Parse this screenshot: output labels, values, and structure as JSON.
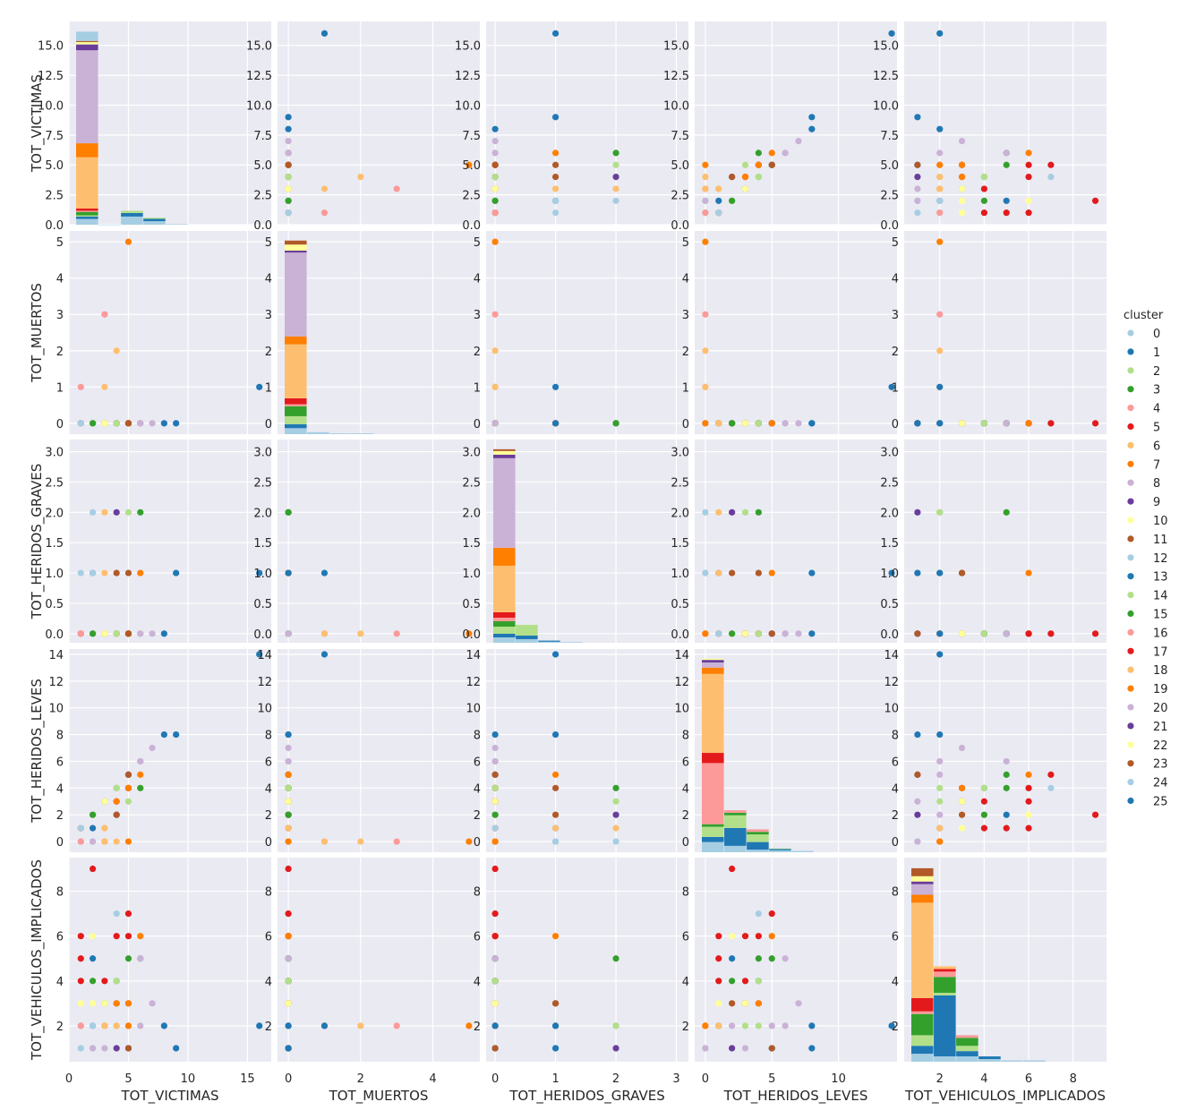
{
  "chart_data": {
    "type": "scatter",
    "kind": "pairplot",
    "variables": [
      "TOT_VICTIMAS",
      "TOT_MUERTOS",
      "TOT_HERIDOS_GRAVES",
      "TOT_HERIDOS_LEVES",
      "TOT_VEHICULOS_IMPLICADOS"
    ],
    "ranges": [
      [
        0,
        17
      ],
      [
        -0.3,
        5.3
      ],
      [
        -0.15,
        3.2
      ],
      [
        -0.8,
        14.4
      ],
      [
        0.4,
        9.5
      ]
    ],
    "xticks": [
      [
        0,
        5,
        10,
        15
      ],
      [
        0,
        2,
        4
      ],
      [
        0,
        1,
        2,
        3
      ],
      [
        0,
        5,
        10
      ],
      [
        2,
        4,
        6,
        8
      ]
    ],
    "yticks": [
      [
        "0.0",
        "2.5",
        "5.0",
        "7.5",
        "10.0",
        "12.5",
        "15.0"
      ],
      [
        "0",
        "1",
        "2",
        "3",
        "4",
        "5"
      ],
      [
        "0.0",
        "0.5",
        "1.0",
        "1.5",
        "2.0",
        "2.5",
        "3.0"
      ],
      [
        "0",
        "2",
        "4",
        "6",
        "8",
        "10",
        "12",
        "14"
      ],
      [
        "2",
        "4",
        "6",
        "8"
      ]
    ],
    "grid": true,
    "legend": {
      "title": "cluster",
      "position": "right",
      "labels": [
        "0",
        "1",
        "2",
        "3",
        "4",
        "5",
        "6",
        "7",
        "8",
        "9",
        "10",
        "11",
        "12",
        "13",
        "14",
        "15",
        "16",
        "17",
        "18",
        "19",
        "20",
        "21",
        "22",
        "23",
        "24",
        "25"
      ]
    },
    "palette": [
      "#a6cee3",
      "#1f78b4",
      "#b2df8a",
      "#33a02c",
      "#fb9a99",
      "#e31a1c",
      "#fdbf6f",
      "#ff7f00",
      "#cab2d6",
      "#6a3d9a",
      "#ffff99",
      "#b15928"
    ],
    "points": [
      [
        1,
        0,
        0,
        1,
        6,
        5
      ],
      [
        1,
        0,
        0,
        1,
        5,
        5
      ],
      [
        1,
        0,
        0,
        1,
        4,
        5
      ],
      [
        1,
        0,
        0,
        1,
        3,
        10
      ],
      [
        1,
        0,
        0,
        1,
        2,
        0
      ],
      [
        1,
        0,
        1,
        0,
        1,
        0
      ],
      [
        1,
        1,
        0,
        0,
        2,
        4
      ],
      [
        2,
        0,
        0,
        2,
        9,
        5
      ],
      [
        2,
        0,
        0,
        2,
        5,
        1
      ],
      [
        2,
        0,
        1,
        1,
        2,
        1
      ],
      [
        2,
        0,
        0,
        2,
        2,
        8
      ],
      [
        2,
        0,
        0,
        2,
        3,
        10
      ],
      [
        2,
        0,
        1,
        0,
        1,
        0
      ],
      [
        2,
        0,
        2,
        0,
        2,
        0
      ],
      [
        2,
        0,
        0,
        2,
        6,
        10
      ],
      [
        2,
        0,
        0,
        0,
        1,
        8
      ],
      [
        3,
        0,
        0,
        3,
        4,
        5
      ],
      [
        3,
        0,
        0,
        3,
        3,
        3
      ],
      [
        3,
        0,
        0,
        3,
        1,
        8
      ],
      [
        3,
        0,
        0,
        0,
        2,
        7
      ],
      [
        3,
        3,
        0,
        0,
        2,
        16
      ],
      [
        3,
        0,
        2,
        1,
        2,
        6
      ],
      [
        3,
        1,
        0,
        0,
        2,
        6
      ],
      [
        3,
        0,
        1,
        1,
        2,
        6
      ],
      [
        4,
        0,
        2,
        2,
        1,
        9
      ],
      [
        4,
        0,
        0,
        4,
        4,
        3
      ],
      [
        4,
        0,
        0,
        3,
        6,
        5
      ],
      [
        4,
        0,
        1,
        2,
        3,
        11
      ],
      [
        4,
        0,
        0,
        4,
        2,
        14
      ],
      [
        4,
        2,
        0,
        0,
        2,
        18
      ],
      [
        4,
        0,
        0,
        3,
        3,
        7
      ],
      [
        4,
        0,
        0,
        4,
        7,
        0
      ],
      [
        5,
        0,
        0,
        5,
        5,
        3
      ],
      [
        5,
        0,
        0,
        5,
        7,
        5
      ],
      [
        5,
        0,
        1,
        4,
        3,
        11
      ],
      [
        5,
        0,
        2,
        3,
        2,
        14
      ],
      [
        5,
        0,
        0,
        5,
        1,
        1
      ],
      [
        5,
        0,
        0,
        5,
        2,
        8
      ],
      [
        5,
        5,
        0,
        0,
        2,
        7
      ],
      [
        5,
        0,
        0,
        4,
        6,
        5
      ],
      [
        5,
        0,
        0,
        4,
        3,
        19
      ],
      [
        5,
        0,
        0,
        5,
        1,
        11
      ],
      [
        6,
        0,
        2,
        4,
        5,
        15
      ],
      [
        6,
        0,
        1,
        5,
        6,
        7
      ],
      [
        6,
        0,
        0,
        6,
        2,
        20
      ],
      [
        7,
        0,
        0,
        7,
        3,
        8
      ],
      [
        8,
        0,
        0,
        8,
        2,
        1
      ],
      [
        9,
        0,
        1,
        8,
        1,
        1
      ],
      [
        16,
        1,
        1,
        14,
        2,
        25
      ],
      [
        2,
        0,
        0,
        2,
        4,
        3
      ],
      [
        3,
        0,
        0,
        3,
        3,
        22
      ],
      [
        4,
        0,
        0,
        4,
        4,
        14
      ],
      [
        6,
        0,
        0,
        6,
        5,
        20
      ]
    ],
    "stacked_hist": [
      [
        [
          0,
          1,
          [
            0.5,
            0.2,
            0.1,
            0.3,
            0.1,
            0.2,
            4.4,
            1.2,
            8,
            0.5,
            0.2,
            0.1,
            0.8
          ]
        ],
        [
          1,
          2,
          [
            0
          ]
        ],
        [
          2,
          3,
          [
            0.7,
            0.3,
            0.2
          ]
        ],
        [
          3,
          4,
          [
            0.3,
            0.2,
            0.1
          ]
        ],
        [
          4,
          5,
          [
            0.05
          ]
        ]
      ],
      [
        [
          0,
          1,
          [
            0.3,
            0.2,
            0.4,
            0.5,
            0.1,
            0.3,
            2.7,
            0.4,
            4.2,
            0.1,
            0.3,
            0.2
          ]
        ],
        [
          1,
          2,
          [
            0.1
          ]
        ],
        [
          2,
          3,
          [
            0.04
          ]
        ],
        [
          3,
          4,
          [
            0.04
          ]
        ]
      ],
      [
        [
          0,
          1,
          [
            0.15,
            0.1,
            0.2,
            0.15,
            0.1,
            0.15,
            1.3,
            0.5,
            2.5,
            0.1,
            0.1,
            0.05
          ]
        ],
        [
          1,
          2,
          [
            0.1,
            0.1,
            0.3
          ]
        ],
        [
          2,
          3,
          [
            0.03,
            0.03
          ]
        ],
        [
          3,
          4,
          [
            0.02
          ]
        ]
      ],
      [
        [
          0,
          1,
          [
            0.8,
            0.4,
            0.8,
            0.2,
            4.8,
            0.8,
            6.2,
            0.5,
            0.4,
            0.2,
            0.1
          ]
        ],
        [
          1,
          2,
          [
            0.5,
            1.4,
            1.0,
            0.2,
            0.2
          ]
        ],
        [
          2,
          3,
          [
            0.2,
            0.6,
            0.6,
            0.2,
            0.2
          ]
        ],
        [
          3,
          4,
          [
            0.15,
            0.1,
            0.05
          ]
        ],
        [
          4,
          5,
          [
            0.1
          ]
        ]
      ],
      [
        [
          0,
          1,
          [
            0.3,
            0.3,
            0.4,
            0.8,
            0.1,
            0.5,
            3.6,
            0.3,
            0.4,
            0.1,
            0.2,
            0.3
          ]
        ],
        [
          1,
          2,
          [
            0.2,
            2.3,
            0.1,
            0.6,
            0.2,
            0.1,
            0.1
          ]
        ],
        [
          2,
          3,
          [
            0.2,
            0.2,
            0.2,
            0.3,
            0.1
          ]
        ],
        [
          3,
          4,
          [
            0.1,
            0.1
          ]
        ],
        [
          4,
          5,
          [
            0.05
          ]
        ],
        [
          5,
          6,
          [
            0.05
          ]
        ]
      ]
    ]
  }
}
